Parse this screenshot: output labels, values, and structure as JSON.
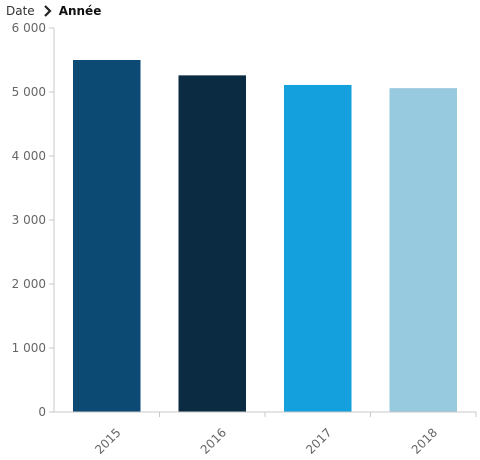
{
  "breadcrumb": {
    "items": [
      "Date",
      "Année"
    ]
  },
  "colors": {
    "axis": "#c8c8c8",
    "tick_text": "#666666",
    "bars": [
      "#0d4a73",
      "#0b2b42",
      "#14a0dc",
      "#97cadf"
    ]
  },
  "chart_data": {
    "type": "bar",
    "title": "",
    "xlabel": "",
    "ylabel": "",
    "categories": [
      "2015",
      "2016",
      "2017",
      "2018"
    ],
    "values": [
      5500,
      5260,
      5110,
      5060
    ],
    "ylim": [
      0,
      6000
    ],
    "yticks": [
      0,
      1000,
      2000,
      3000,
      4000,
      5000,
      6000
    ],
    "ytick_labels": [
      "0",
      "1 000",
      "2 000",
      "3 000",
      "4 000",
      "5 000",
      "6 000"
    ],
    "grid": false,
    "legend": "none"
  }
}
